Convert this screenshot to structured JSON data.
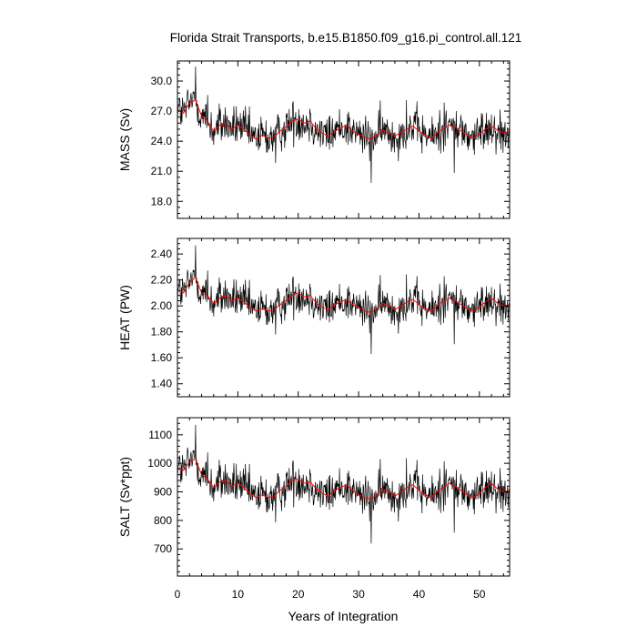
{
  "title": "Florida Strait Transports, b.e15.B1850.f09_g16.pi_control.all.121",
  "xlabel": "Years of Integration",
  "colors": {
    "raw": "#000000",
    "smooth": "#ff0000",
    "frame": "#000000"
  },
  "chart_data": [
    {
      "type": "line",
      "panel": "mass",
      "ylabel": "MASS (Sv)",
      "xlim": [
        0,
        55
      ],
      "ylim": [
        16.3,
        32.0
      ],
      "yticks": [
        18.0,
        21.0,
        24.0,
        27.0,
        30.0
      ],
      "ytick_labels": [
        "18.0",
        "21.0",
        "24.0",
        "27.0",
        "30.0"
      ],
      "xticks": [
        0,
        10,
        20,
        30,
        40,
        50
      ],
      "xtick_labels": [
        "0",
        "10",
        "20",
        "30",
        "40",
        "50"
      ],
      "mean": 25.0,
      "spread": 1.9,
      "series": [
        {
          "style": "raw",
          "values": []
        },
        {
          "style": "smooth",
          "values": [
            [
              0,
              27.2
            ],
            [
              1,
              26.8
            ],
            [
              2,
              27.8
            ],
            [
              3,
              28.1
            ],
            [
              4,
              26.5
            ],
            [
              5,
              26.0
            ],
            [
              6,
              25.0
            ],
            [
              7,
              25.6
            ],
            [
              8,
              25.8
            ],
            [
              9,
              25.2
            ],
            [
              10,
              25.6
            ],
            [
              11,
              25.2
            ],
            [
              12,
              24.6
            ],
            [
              13,
              24.2
            ],
            [
              14,
              24.6
            ],
            [
              15,
              24.3
            ],
            [
              16,
              24.4
            ],
            [
              17,
              25.0
            ],
            [
              18,
              25.4
            ],
            [
              19,
              26.0
            ],
            [
              20,
              26.2
            ],
            [
              21,
              25.8
            ],
            [
              22,
              26.0
            ],
            [
              23,
              25.2
            ],
            [
              24,
              24.8
            ],
            [
              25,
              24.5
            ],
            [
              26,
              25.0
            ],
            [
              27,
              25.3
            ],
            [
              28,
              25.6
            ],
            [
              29,
              25.0
            ],
            [
              30,
              24.7
            ],
            [
              31,
              24.4
            ],
            [
              32,
              24.2
            ],
            [
              33,
              24.6
            ],
            [
              34,
              25.1
            ],
            [
              35,
              24.8
            ],
            [
              36,
              24.5
            ],
            [
              37,
              24.9
            ],
            [
              38,
              25.2
            ],
            [
              39,
              25.5
            ],
            [
              40,
              25.0
            ],
            [
              41,
              24.6
            ],
            [
              42,
              24.3
            ],
            [
              43,
              24.8
            ],
            [
              44,
              25.3
            ],
            [
              45,
              25.6
            ],
            [
              46,
              25.4
            ],
            [
              47,
              25.0
            ],
            [
              48,
              24.6
            ],
            [
              49,
              24.3
            ],
            [
              50,
              24.7
            ],
            [
              51,
              25.2
            ],
            [
              52,
              25.5
            ],
            [
              53,
              25.1
            ],
            [
              54,
              24.8
            ],
            [
              55,
              25.0
            ]
          ]
        }
      ]
    },
    {
      "type": "line",
      "panel": "heat",
      "ylabel": "HEAT (PW)",
      "xlim": [
        0,
        55
      ],
      "ylim": [
        1.3,
        2.52
      ],
      "yticks": [
        1.4,
        1.6,
        1.8,
        2.0,
        2.2,
        2.4
      ],
      "ytick_labels": [
        "1.40",
        "1.60",
        "1.80",
        "2.00",
        "2.20",
        "2.40"
      ],
      "xticks": [
        0,
        10,
        20,
        30,
        40,
        50
      ],
      "xtick_labels": [
        "0",
        "10",
        "20",
        "30",
        "40",
        "50"
      ],
      "mean": 2.03,
      "spread": 0.14,
      "series": [
        {
          "style": "raw",
          "values": []
        },
        {
          "style": "smooth",
          "values": [
            [
              0,
              2.12
            ],
            [
              1,
              2.1
            ],
            [
              2,
              2.18
            ],
            [
              3,
              2.22
            ],
            [
              4,
              2.1
            ],
            [
              5,
              2.08
            ],
            [
              6,
              2.02
            ],
            [
              7,
              2.06
            ],
            [
              8,
              2.08
            ],
            [
              9,
              2.04
            ],
            [
              10,
              2.06
            ],
            [
              11,
              2.03
            ],
            [
              12,
              1.99
            ],
            [
              13,
              1.96
            ],
            [
              14,
              1.98
            ],
            [
              15,
              1.96
            ],
            [
              16,
              1.97
            ],
            [
              17,
              2.01
            ],
            [
              18,
              2.04
            ],
            [
              19,
              2.08
            ],
            [
              20,
              2.1
            ],
            [
              21,
              2.07
            ],
            [
              22,
              2.08
            ],
            [
              23,
              2.02
            ],
            [
              24,
              1.99
            ],
            [
              25,
              1.97
            ],
            [
              26,
              2.01
            ],
            [
              27,
              2.03
            ],
            [
              28,
              2.05
            ],
            [
              29,
              2.01
            ],
            [
              30,
              1.99
            ],
            [
              31,
              1.96
            ],
            [
              32,
              1.95
            ],
            [
              33,
              1.98
            ],
            [
              34,
              2.02
            ],
            [
              35,
              2.0
            ],
            [
              36,
              1.97
            ],
            [
              37,
              2.0
            ],
            [
              38,
              2.03
            ],
            [
              39,
              2.05
            ],
            [
              40,
              2.01
            ],
            [
              41,
              1.98
            ],
            [
              42,
              1.96
            ],
            [
              43,
              2.0
            ],
            [
              44,
              2.04
            ],
            [
              45,
              2.06
            ],
            [
              46,
              2.04
            ],
            [
              47,
              2.01
            ],
            [
              48,
              1.98
            ],
            [
              49,
              1.96
            ],
            [
              50,
              1.99
            ],
            [
              51,
              2.03
            ],
            [
              52,
              2.06
            ],
            [
              53,
              2.02
            ],
            [
              54,
              2.0
            ],
            [
              55,
              2.01
            ]
          ]
        }
      ]
    },
    {
      "type": "line",
      "panel": "salt",
      "ylabel": "SALT (Sv*ppt)",
      "xlim": [
        0,
        55
      ],
      "ylim": [
        605,
        1160
      ],
      "yticks": [
        700,
        800,
        900,
        1000,
        1100
      ],
      "ytick_labels": [
        "700",
        "800",
        "900",
        "1000",
        "1100"
      ],
      "xticks": [
        0,
        10,
        20,
        30,
        40,
        50
      ],
      "xtick_labels": [
        "0",
        "10",
        "20",
        "30",
        "40",
        "50"
      ],
      "mean": 905,
      "spread": 68,
      "series": [
        {
          "style": "raw",
          "values": []
        },
        {
          "style": "smooth",
          "values": [
            [
              0,
              985
            ],
            [
              1,
              975
            ],
            [
              2,
              1005
            ],
            [
              3,
              1015
            ],
            [
              4,
              960
            ],
            [
              5,
              945
            ],
            [
              6,
              915
            ],
            [
              7,
              935
            ],
            [
              8,
              940
            ],
            [
              9,
              920
            ],
            [
              10,
              930
            ],
            [
              11,
              915
            ],
            [
              12,
              895
            ],
            [
              13,
              880
            ],
            [
              14,
              890
            ],
            [
              15,
              880
            ],
            [
              16,
              885
            ],
            [
              17,
              905
            ],
            [
              18,
              920
            ],
            [
              19,
              940
            ],
            [
              20,
              945
            ],
            [
              21,
              930
            ],
            [
              22,
              935
            ],
            [
              23,
              910
            ],
            [
              24,
              895
            ],
            [
              25,
              885
            ],
            [
              26,
              905
            ],
            [
              27,
              915
            ],
            [
              28,
              925
            ],
            [
              29,
              905
            ],
            [
              30,
              890
            ],
            [
              31,
              880
            ],
            [
              32,
              875
            ],
            [
              33,
              890
            ],
            [
              34,
              910
            ],
            [
              35,
              900
            ],
            [
              36,
              885
            ],
            [
              37,
              900
            ],
            [
              38,
              915
            ],
            [
              39,
              925
            ],
            [
              40,
              905
            ],
            [
              41,
              890
            ],
            [
              42,
              880
            ],
            [
              43,
              900
            ],
            [
              44,
              915
            ],
            [
              45,
              930
            ],
            [
              46,
              920
            ],
            [
              47,
              905
            ],
            [
              48,
              890
            ],
            [
              49,
              880
            ],
            [
              50,
              895
            ],
            [
              51,
              915
            ],
            [
              52,
              930
            ],
            [
              53,
              910
            ],
            [
              54,
              900
            ],
            [
              55,
              905
            ]
          ]
        }
      ]
    }
  ]
}
